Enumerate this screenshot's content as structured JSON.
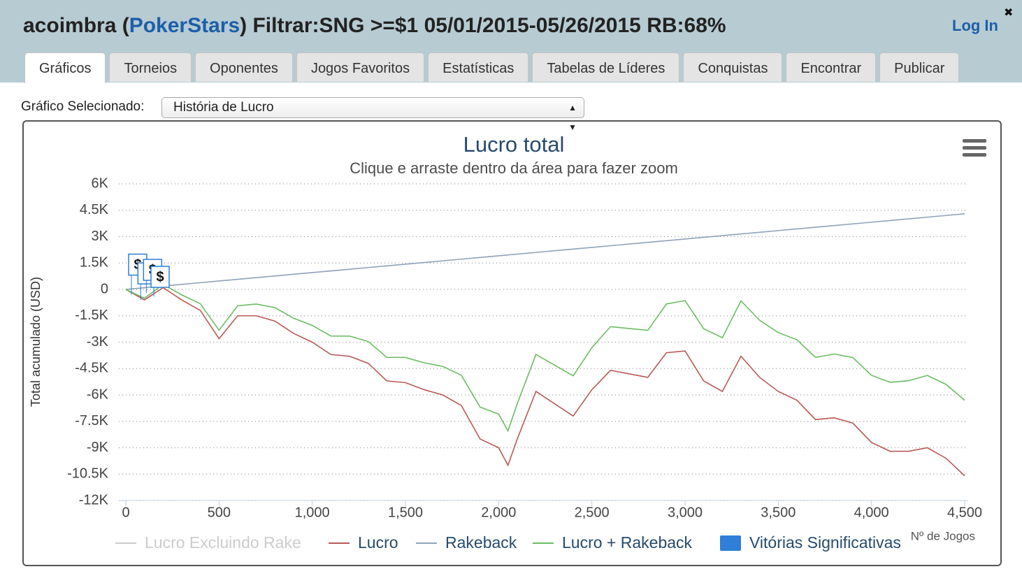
{
  "header": {
    "title_parts": [
      "acoimbra (",
      "PokerStars",
      ") Filtrar:SNG >=$1 05/01/2015-05/26/2015 RB:68%"
    ],
    "login": "Log In",
    "close": "✖",
    "tabs": [
      "Gráficos",
      "Torneios",
      "Oponentes",
      "Jogos Favoritos",
      "Estatísticas",
      "Tabelas de Líderes",
      "Conquistas",
      "Encontrar",
      "Publicar"
    ]
  },
  "selector": {
    "label": "Gráfico Selecionado:",
    "value": "História de Lucro"
  },
  "chart_data": {
    "type": "line",
    "title": "Lucro total",
    "subtitle": "Clique e arraste dentro da área para fazer zoom",
    "y_label": "Total acumulado (USD)",
    "x_label": "Nº de Jogos",
    "x": [
      0,
      100,
      200,
      300,
      400,
      500,
      600,
      700,
      800,
      900,
      1000,
      1100,
      1200,
      1300,
      1400,
      1500,
      1600,
      1700,
      1800,
      1900,
      2000,
      2050,
      2100,
      2200,
      2300,
      2400,
      2500,
      2600,
      2700,
      2800,
      2900,
      3000,
      3100,
      3200,
      3300,
      3400,
      3500,
      3600,
      3700,
      3800,
      3900,
      4000,
      4100,
      4200,
      4300,
      4400,
      4500
    ],
    "series": [
      {
        "name": "Lucro Excluindo Rake",
        "color": "#cccccc",
        "visible": false
      },
      {
        "name": "Lucro",
        "color": "#b85a57",
        "values": [
          0,
          -600,
          100,
          -600,
          -1200,
          -2800,
          -1500,
          -1500,
          -1800,
          -2500,
          -3000,
          -3700,
          -3800,
          -4200,
          -5200,
          -5300,
          -5700,
          -6000,
          -6600,
          -8500,
          -9000,
          -10000,
          -8500,
          -5800,
          -6500,
          -7200,
          -5700,
          -4600,
          -4800,
          -5000,
          -3600,
          -3500,
          -5200,
          -5800,
          -3800,
          -5000,
          -5800,
          -6300,
          -7400,
          -7300,
          -7600,
          -8700,
          -9200,
          -9200,
          -9000,
          -9600,
          -10600
        ]
      },
      {
        "name": "Rakeback",
        "color": "#8fa3b8",
        "values": [
          0,
          96,
          191,
          287,
          382,
          478,
          573,
          669,
          764,
          860,
          955,
          1051,
          1146,
          1242,
          1337,
          1433,
          1528,
          1624,
          1719,
          1815,
          1910,
          1958,
          2006,
          2101,
          2197,
          2292,
          2388,
          2483,
          2579,
          2674,
          2770,
          2865,
          2961,
          3056,
          3152,
          3247,
          3343,
          3438,
          3534,
          3629,
          3725,
          3820,
          3916,
          4011,
          4107,
          4202,
          4298
        ]
      },
      {
        "name": "Lucro + Rakeback",
        "color": "#6cbd62",
        "values": [
          0,
          -504,
          291,
          -313,
          -818,
          -2322,
          -927,
          -831,
          -1036,
          -1640,
          -2045,
          -2649,
          -2654,
          -2958,
          -3863,
          -3867,
          -4172,
          -4376,
          -4881,
          -6685,
          -7090,
          -8042,
          -6494,
          -3699,
          -4303,
          -4908,
          -3312,
          -2117,
          -2221,
          -2326,
          -830,
          -635,
          -2239,
          -2744,
          -648,
          -1753,
          -2457,
          -2862,
          -3866,
          -3671,
          -3875,
          -4880,
          -5284,
          -5189,
          -4893,
          -5398,
          -6302
        ]
      },
      {
        "name": "Vitórias Significativas",
        "color": "#2f7ed8",
        "type": "flags",
        "text": "$",
        "x": [
          30,
          80,
          110,
          150
        ],
        "values": [
          -300,
          -600,
          -200,
          -400
        ]
      }
    ],
    "ylim": [
      -12000,
      6000
    ],
    "yticks": [
      {
        "value": -12000,
        "label": "-12K"
      },
      {
        "value": -10500,
        "label": "-10.5K"
      },
      {
        "value": -9000,
        "label": "-9K"
      },
      {
        "value": -7500,
        "label": "-7.5K"
      },
      {
        "value": -6000,
        "label": "-6K"
      },
      {
        "value": -4500,
        "label": "-4.5K"
      },
      {
        "value": -3000,
        "label": "-3K"
      },
      {
        "value": -1500,
        "label": "-1.5K"
      },
      0,
      {
        "value": 1500,
        "label": "1.5K"
      },
      {
        "value": 3000,
        "label": "3K"
      },
      {
        "value": 4500,
        "label": "4.5K"
      },
      {
        "value": 6000,
        "label": "6K"
      }
    ],
    "xlim": [
      0,
      4500
    ],
    "xticks": [
      0,
      500,
      {
        "value": 1000,
        "label": "1,000"
      },
      {
        "value": 1500,
        "label": "1,500"
      },
      {
        "value": 2000,
        "label": "2,000"
      },
      {
        "value": 2500,
        "label": "2,500"
      },
      {
        "value": 3000,
        "label": "3,000"
      },
      {
        "value": 3500,
        "label": "3,500"
      },
      {
        "value": 4000,
        "label": "4,000"
      },
      {
        "value": 4500,
        "label": "4,500"
      }
    ],
    "grid": true
  }
}
